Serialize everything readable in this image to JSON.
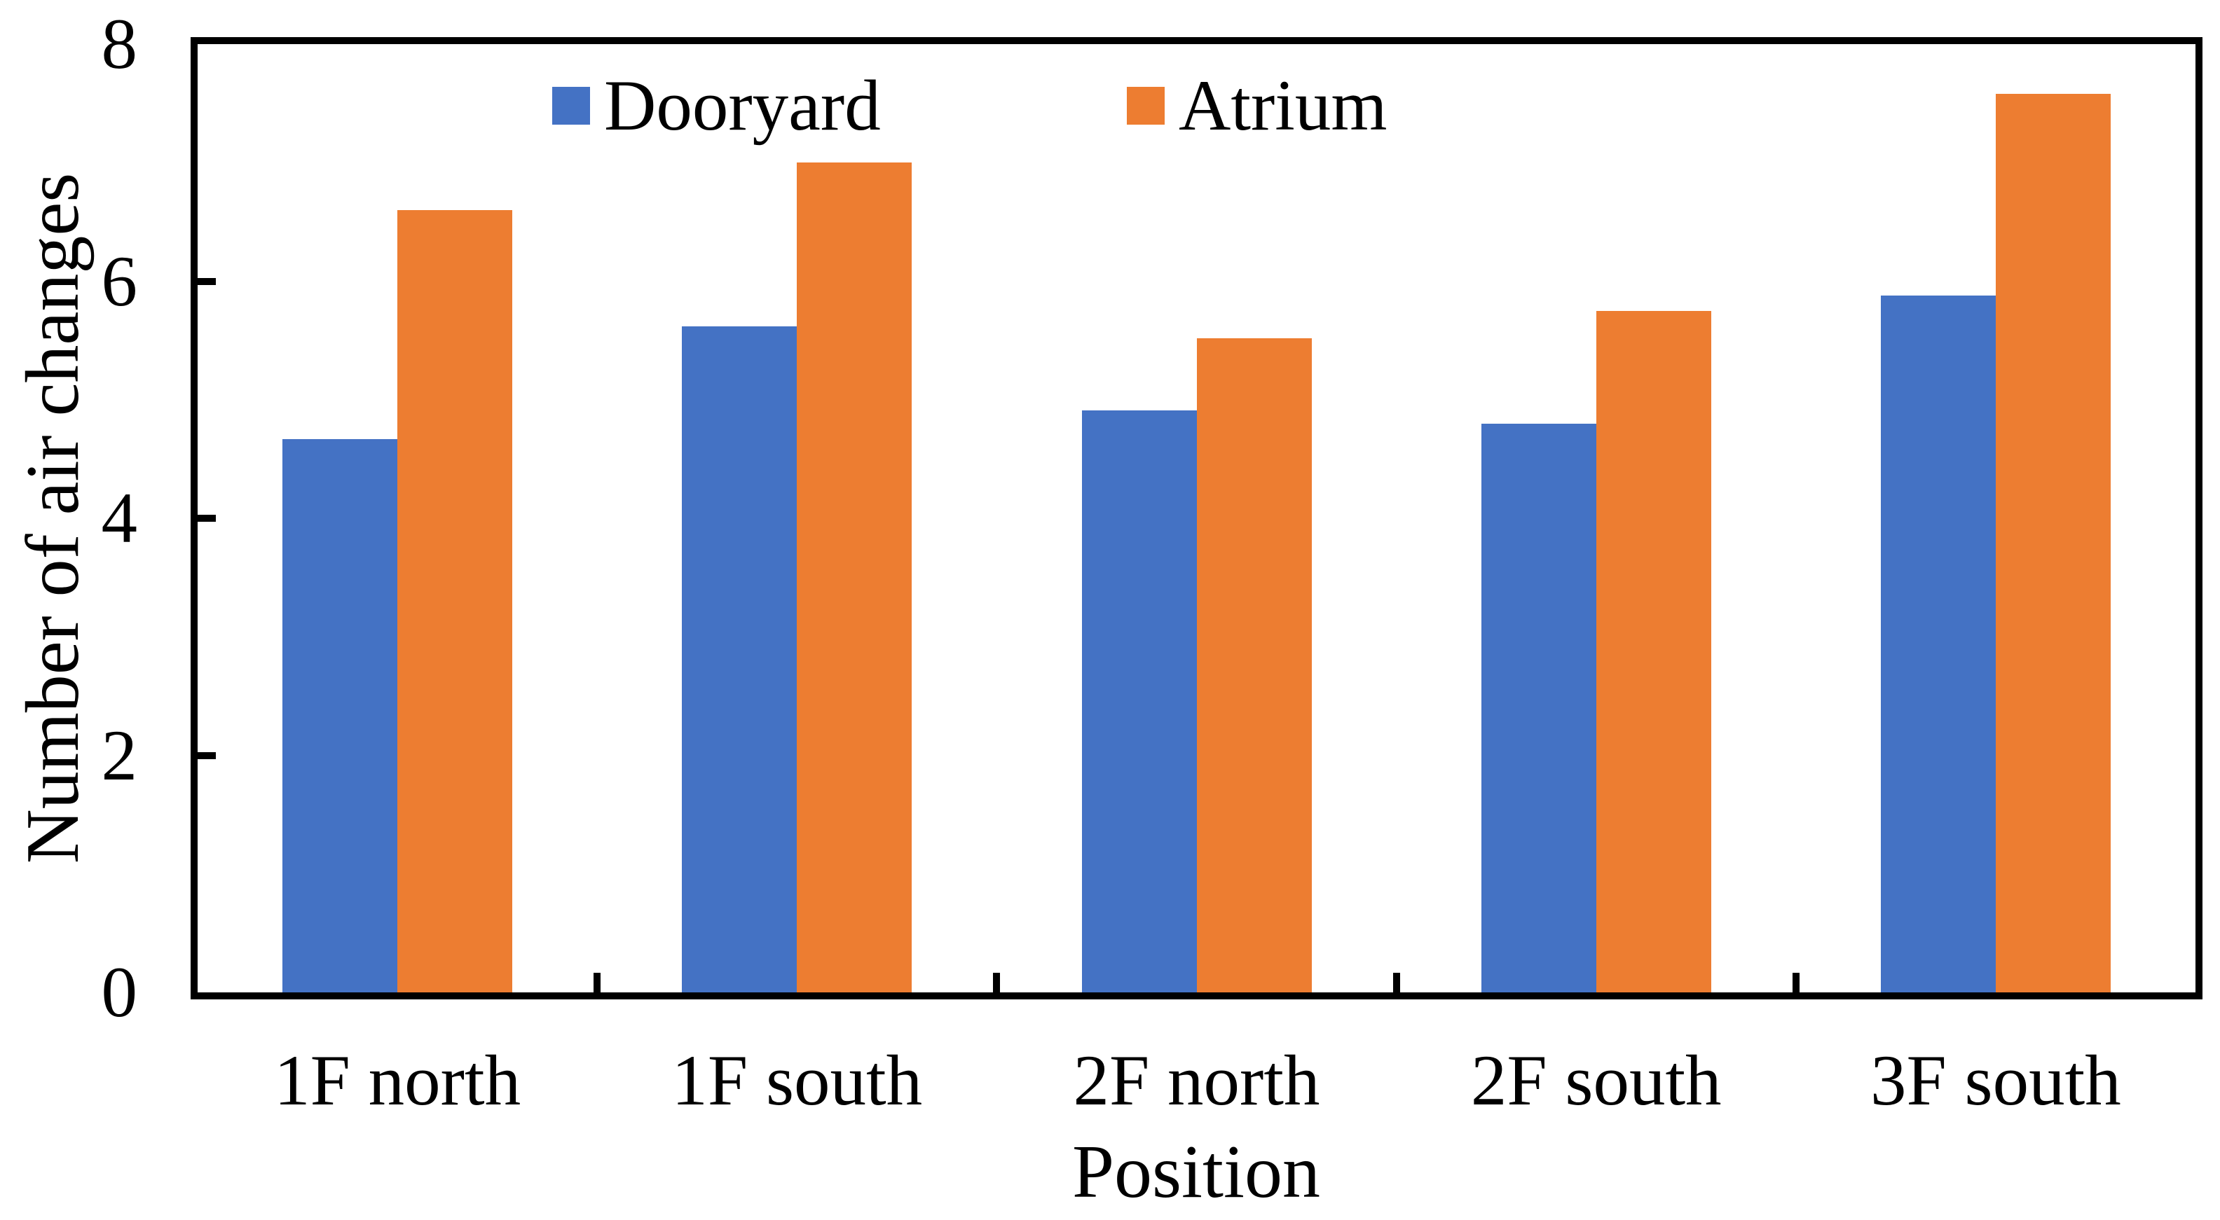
{
  "chart_data": {
    "type": "bar",
    "title": "",
    "xlabel": "Position",
    "ylabel": "Number of air changes",
    "categories": [
      "1F north",
      "1F south",
      "2F north",
      "2F south",
      "3F south"
    ],
    "series": [
      {
        "name": "Dooryard",
        "color": "#4472C4",
        "values": [
          4.67,
          5.62,
          4.91,
          4.8,
          5.88
        ]
      },
      {
        "name": "Atrium",
        "color": "#ED7D31",
        "values": [
          6.6,
          7.0,
          5.52,
          5.75,
          7.58
        ]
      }
    ],
    "ylim": [
      0,
      8
    ],
    "yticks": [
      0,
      2,
      4,
      6,
      8
    ],
    "grid": false,
    "legend_position": "top-inside",
    "colors": {
      "axis": "#000000",
      "background": "#ffffff"
    }
  }
}
